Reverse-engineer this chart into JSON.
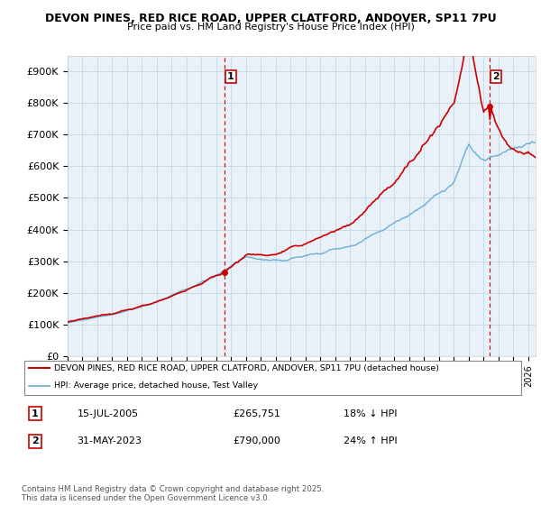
{
  "title_line1": "DEVON PINES, RED RICE ROAD, UPPER CLATFORD, ANDOVER, SP11 7PU",
  "title_line2": "Price paid vs. HM Land Registry's House Price Index (HPI)",
  "ylim": [
    0,
    950000
  ],
  "yticks": [
    0,
    100000,
    200000,
    300000,
    400000,
    500000,
    600000,
    700000,
    800000,
    900000
  ],
  "ytick_labels": [
    "£0",
    "£100K",
    "£200K",
    "£300K",
    "£400K",
    "£500K",
    "£600K",
    "£700K",
    "£800K",
    "£900K"
  ],
  "xlim_start": 1995.0,
  "xlim_end": 2026.5,
  "hpi_color": "#6baed6",
  "price_color": "#cc0000",
  "marker1_year": 2005.54,
  "marker1_price": 265751,
  "marker2_year": 2023.41,
  "marker2_price": 790000,
  "legend_label1": "DEVON PINES, RED RICE ROAD, UPPER CLATFORD, ANDOVER, SP11 7PU (detached house)",
  "legend_label2": "HPI: Average price, detached house, Test Valley",
  "annotation1_label": "1",
  "annotation2_label": "2",
  "table_row1": [
    "1",
    "15-JUL-2005",
    "£265,751",
    "18% ↓ HPI"
  ],
  "table_row2": [
    "2",
    "31-MAY-2023",
    "£790,000",
    "24% ↑ HPI"
  ],
  "footnote": "Contains HM Land Registry data © Crown copyright and database right 2025.\nThis data is licensed under the Open Government Licence v3.0.",
  "background_color": "#ffffff",
  "chart_bg_color": "#e8f0f8",
  "grid_color": "#c0cfe0",
  "dashed_vline_color": "#cc0000"
}
